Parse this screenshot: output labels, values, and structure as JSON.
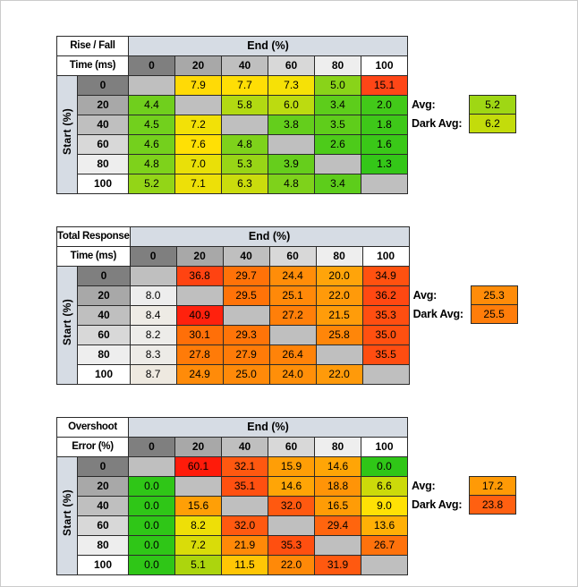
{
  "canvas": {
    "bg": "#ffffff",
    "frame_color": "#cbcbcb"
  },
  "shared": {
    "end_label": "End (%)",
    "start_label": "Start (%)",
    "col_headers": [
      "0",
      "20",
      "40",
      "60",
      "80",
      "100"
    ],
    "row_headers": [
      "0",
      "20",
      "40",
      "60",
      "80",
      "100"
    ],
    "header_shades": [
      "#7f7f7f",
      "#a8a8a8",
      "#bfbfbf",
      "#d8d8d8",
      "#eeeeee",
      "#ffffff"
    ],
    "band_bg": "#d6dce4",
    "blank_bg": "#bfbfbf",
    "avg_label": "Avg:",
    "dark_avg_label": "Dark Avg:"
  },
  "chart_data": [
    {
      "type": "heatmap",
      "title_line1": "Rise / Fall",
      "title_line2": "Time (ms)",
      "x_axis_label": "End (%)",
      "y_axis_label": "Start (%)",
      "x": [
        0,
        20,
        40,
        60,
        80,
        100
      ],
      "y": [
        0,
        20,
        40,
        60,
        80,
        100
      ],
      "values": [
        [
          null,
          7.9,
          7.7,
          7.3,
          5.0,
          15.1
        ],
        [
          4.4,
          null,
          5.8,
          6.0,
          3.4,
          2.0
        ],
        [
          4.5,
          7.2,
          null,
          3.8,
          3.5,
          1.8
        ],
        [
          4.6,
          7.6,
          4.8,
          null,
          2.6,
          1.6
        ],
        [
          4.8,
          7.0,
          5.3,
          3.9,
          null,
          1.3
        ],
        [
          5.2,
          7.1,
          6.3,
          4.8,
          3.4,
          null
        ]
      ],
      "avg": 5.2,
      "dark_avg": 6.2,
      "avg_color": "#9fd714",
      "dark_avg_color": "#c3dc0b",
      "color_stops": [
        {
          "v": 1.3,
          "c": "#34c718"
        },
        {
          "v": 4.6,
          "c": "#74d01d"
        },
        {
          "v": 6.2,
          "c": "#c6dc0e"
        },
        {
          "v": 7.5,
          "c": "#ffe205"
        },
        {
          "v": 15.1,
          "c": "#ff4617"
        }
      ]
    },
    {
      "type": "heatmap",
      "title_line1": "Total Response",
      "title_line2": "Time (ms)",
      "x_axis_label": "End (%)",
      "y_axis_label": "Start (%)",
      "x": [
        0,
        20,
        40,
        60,
        80,
        100
      ],
      "y": [
        0,
        20,
        40,
        60,
        80,
        100
      ],
      "values": [
        [
          null,
          36.8,
          29.7,
          24.4,
          20.0,
          34.9
        ],
        [
          8.0,
          null,
          29.5,
          25.1,
          22.0,
          36.2
        ],
        [
          8.4,
          40.9,
          null,
          27.2,
          21.5,
          35.3
        ],
        [
          8.2,
          30.1,
          29.3,
          null,
          25.8,
          35.0
        ],
        [
          8.3,
          27.8,
          27.9,
          26.4,
          null,
          35.5
        ],
        [
          8.7,
          24.9,
          25.0,
          24.0,
          22.0,
          null
        ]
      ],
      "avg": 25.3,
      "dark_avg": 25.5,
      "avg_color": "#ff8c09",
      "dark_avg_color": "#ff7d0a",
      "color_stops": [
        {
          "v": 8.0,
          "c": "#ededed"
        },
        {
          "v": 20.0,
          "c": "#ffa40a"
        },
        {
          "v": 30.0,
          "c": "#ff7008"
        },
        {
          "v": 36.0,
          "c": "#ff4a12"
        },
        {
          "v": 41.0,
          "c": "#ff200d"
        }
      ]
    },
    {
      "type": "heatmap",
      "title_line1": "Overshoot",
      "title_line2": "Error (%)",
      "x_axis_label": "End (%)",
      "y_axis_label": "Start (%)",
      "x": [
        0,
        20,
        40,
        60,
        80,
        100
      ],
      "y": [
        0,
        20,
        40,
        60,
        80,
        100
      ],
      "values": [
        [
          null,
          60.1,
          32.1,
          15.9,
          14.6,
          0.0
        ],
        [
          0.0,
          null,
          35.1,
          14.6,
          18.8,
          6.6
        ],
        [
          0.0,
          15.6,
          null,
          32.0,
          16.5,
          9.0
        ],
        [
          0.0,
          8.2,
          32.0,
          null,
          29.4,
          13.6
        ],
        [
          0.0,
          7.2,
          21.9,
          35.3,
          null,
          26.7
        ],
        [
          0.0,
          5.1,
          11.5,
          22.0,
          31.9,
          null
        ]
      ],
      "avg": 17.2,
      "dark_avg": 23.8,
      "avg_color": "#ff9a06",
      "dark_avg_color": "#ff6011",
      "color_stops": [
        {
          "v": 0.0,
          "c": "#2fc617"
        },
        {
          "v": 5.0,
          "c": "#aad50d"
        },
        {
          "v": 9.0,
          "c": "#ffe105"
        },
        {
          "v": 15.0,
          "c": "#ffa106"
        },
        {
          "v": 22.0,
          "c": "#ff8908"
        },
        {
          "v": 33.0,
          "c": "#ff5411"
        },
        {
          "v": 60.1,
          "c": "#ff1b0a"
        }
      ]
    }
  ]
}
